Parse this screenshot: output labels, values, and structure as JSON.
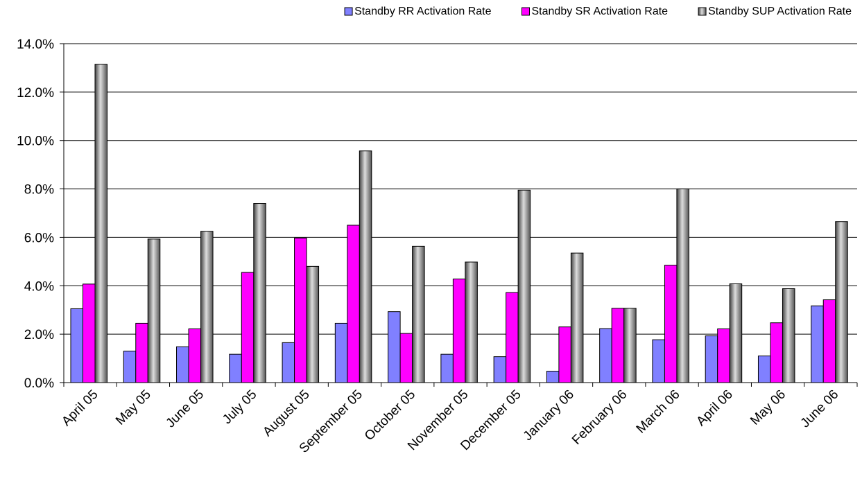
{
  "chart_data": {
    "type": "bar",
    "title": "",
    "xlabel": "",
    "ylabel": "",
    "categories": [
      "April 05",
      "May  05",
      "June 05",
      "July 05",
      "August 05",
      "September 05",
      "October 05",
      "November 05",
      "December 05",
      "January 06",
      "February 06",
      "March 06",
      "April 06",
      "May 06",
      "June 06"
    ],
    "series": [
      {
        "name": "Standby RR Activation Rate",
        "color": "#8080FF",
        "values": [
          3.05,
          1.3,
          1.48,
          1.17,
          1.65,
          2.45,
          2.93,
          1.17,
          1.07,
          0.47,
          2.23,
          1.77,
          1.93,
          1.1,
          3.17
        ]
      },
      {
        "name": "Standby SR Activation Rate",
        "color": "#FF00FF",
        "values": [
          4.07,
          2.45,
          2.22,
          4.55,
          5.97,
          6.5,
          2.03,
          4.28,
          3.72,
          2.3,
          3.07,
          4.85,
          2.22,
          2.47,
          3.42
        ]
      },
      {
        "name": "Standby SUP Activation Rate",
        "color": "#808080",
        "values": [
          13.15,
          5.93,
          6.25,
          7.4,
          4.8,
          9.57,
          5.63,
          4.98,
          7.95,
          5.35,
          3.07,
          8.0,
          4.08,
          3.88,
          6.65
        ]
      }
    ],
    "ylim": [
      0,
      14
    ],
    "yticks": [
      "0.0%",
      "2.0%",
      "4.0%",
      "6.0%",
      "8.0%",
      "10.0%",
      "12.0%",
      "14.0%"
    ],
    "grid": true,
    "legend_position": "top-right"
  }
}
